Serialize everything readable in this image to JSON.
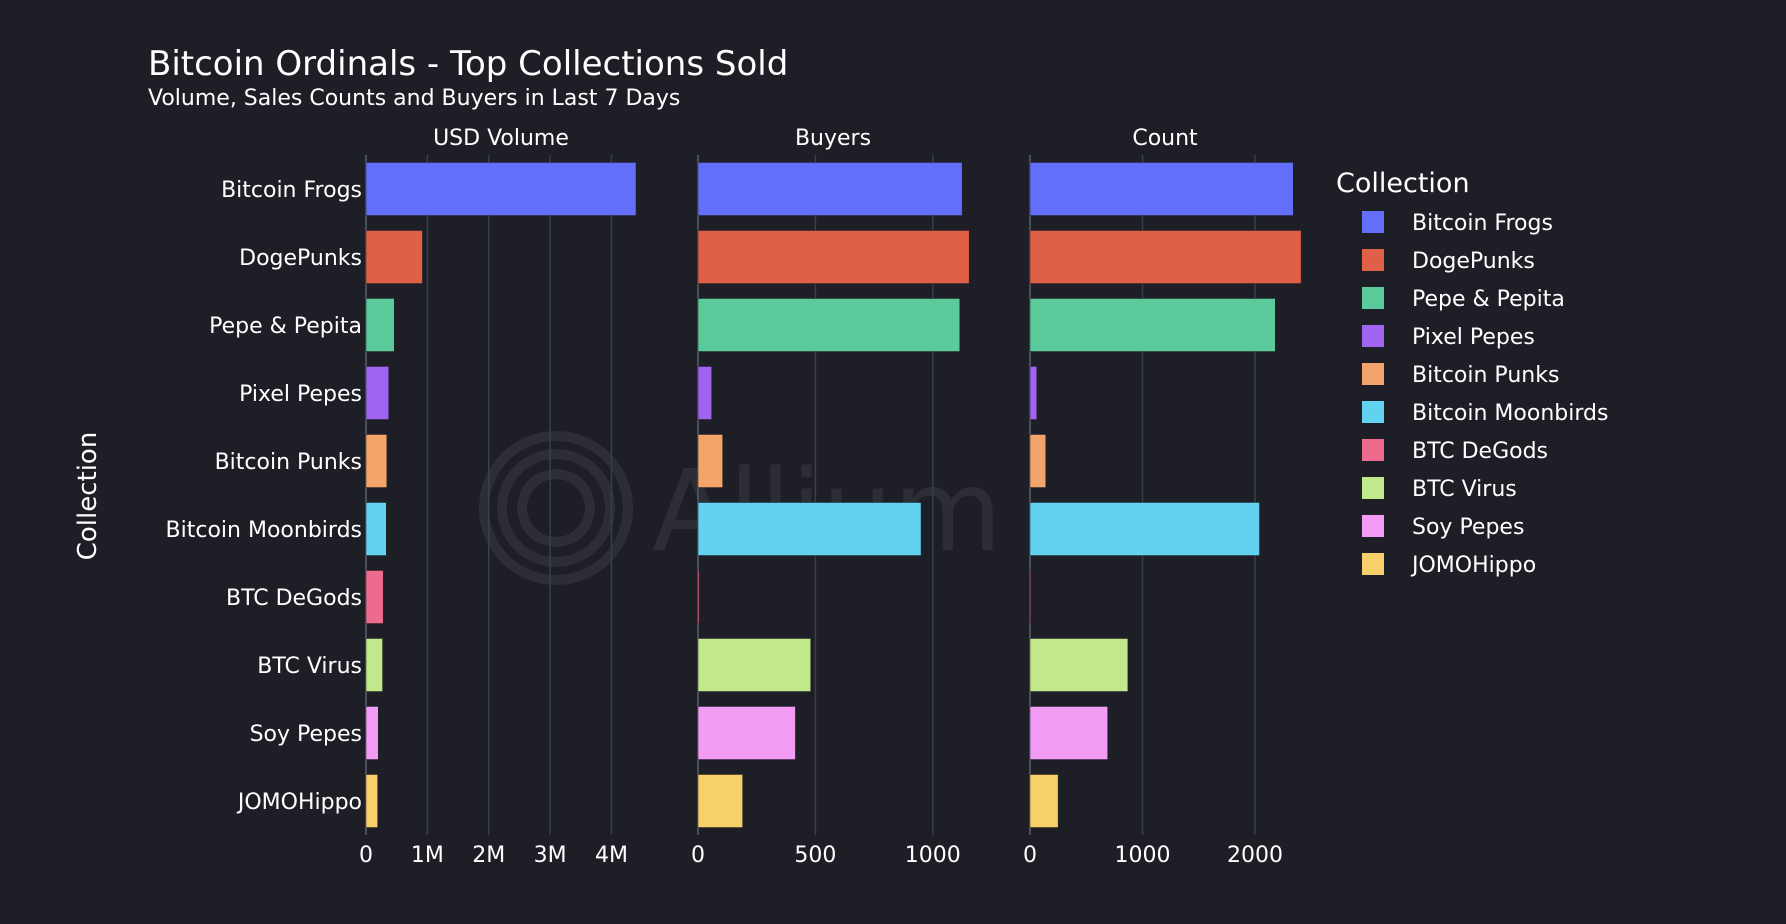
{
  "chart_data": {
    "type": "bar",
    "orientation": "horizontal",
    "title": "Bitcoin Ordinals - Top Collections Sold",
    "subtitle": "Volume, Sales Counts and Buyers in Last 7 Days",
    "ylabel": "Collection",
    "legend_title": "Collection",
    "legend_position": "right",
    "grid": true,
    "watermark": "Allium",
    "categories": [
      "Bitcoin Frogs",
      "DogePunks",
      "Pepe & Pepita",
      "Pixel Pepes",
      "Bitcoin Punks",
      "Bitcoin Moonbirds",
      "BTC DeGods",
      "BTC Virus",
      "Soy Pepes",
      "JOMOHippo"
    ],
    "colors": [
      "#636efa",
      "#e05f47",
      "#5ccb9b",
      "#a163f2",
      "#f3a46a",
      "#63d2f0",
      "#ef6b8e",
      "#c1e98b",
      "#f29cf5",
      "#f8d06a"
    ],
    "panels": [
      {
        "title": "USD Volume",
        "xlim": [
          0,
          4400000
        ],
        "ticks": [
          0,
          1000000,
          2000000,
          3000000,
          4000000
        ],
        "tick_labels": [
          "0",
          "1M",
          "2M",
          "3M",
          "4M"
        ],
        "values": [
          4400000,
          920000,
          460000,
          370000,
          340000,
          330000,
          280000,
          270000,
          200000,
          190000
        ]
      },
      {
        "title": "Buyers",
        "xlim": [
          0,
          1150
        ],
        "ticks": [
          0,
          500,
          1000
        ],
        "tick_labels": [
          "0",
          "500",
          "1000"
        ],
        "values": [
          1125,
          1155,
          1115,
          58,
          105,
          950,
          5,
          480,
          415,
          190
        ]
      },
      {
        "title": "Count",
        "xlim": [
          0,
          2400
        ],
        "ticks": [
          0,
          1000,
          2000
        ],
        "tick_labels": [
          "0",
          "1000",
          "2000"
        ],
        "values": [
          2340,
          2410,
          2180,
          60,
          140,
          2040,
          8,
          870,
          690,
          250
        ]
      }
    ]
  }
}
